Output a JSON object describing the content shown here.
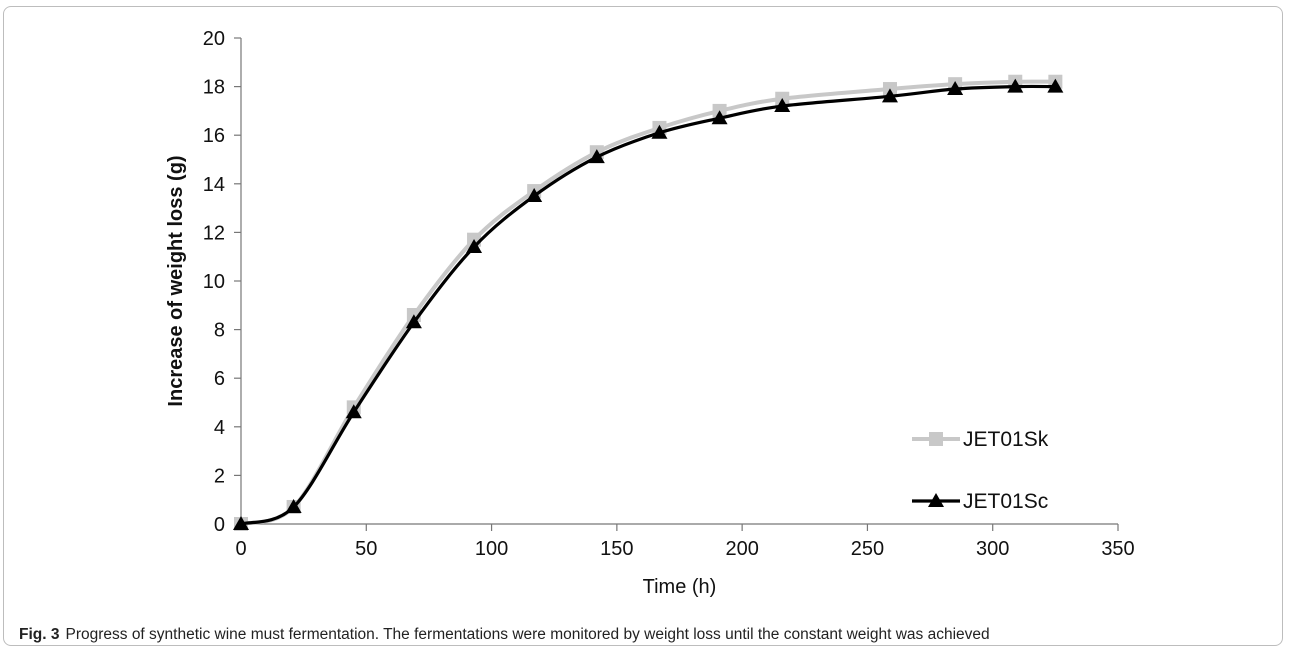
{
  "figure": {
    "label": "Fig. 3",
    "caption": "Progress of synthetic wine must fermentation. The fermentations were monitored by weight loss until the constant weight was achieved"
  },
  "chart_data": {
    "type": "line",
    "xlabel": "Time (h)",
    "ylabel": "Increase of weight loss (g)",
    "xlim": [
      0,
      350
    ],
    "ylim": [
      0,
      20
    ],
    "xticks": [
      0,
      50,
      100,
      150,
      200,
      250,
      300,
      350
    ],
    "yticks": [
      0,
      2,
      4,
      6,
      8,
      10,
      12,
      14,
      16,
      18,
      20
    ],
    "grid": false,
    "legend_position": "bottom-right",
    "series": [
      {
        "name": "JET01Sk",
        "marker": "square",
        "color": "#c8c8c8",
        "x": [
          0,
          21,
          45,
          69,
          93,
          117,
          142,
          167,
          191,
          216,
          259,
          285,
          309,
          325
        ],
        "y": [
          0,
          0.7,
          4.8,
          8.6,
          11.7,
          13.7,
          15.3,
          16.3,
          17.0,
          17.5,
          17.9,
          18.1,
          18.2,
          18.2
        ]
      },
      {
        "name": "JET01Sc",
        "marker": "triangle",
        "color": "#000000",
        "x": [
          0,
          21,
          45,
          69,
          93,
          117,
          142,
          167,
          191,
          216,
          259,
          285,
          309,
          325
        ],
        "y": [
          0,
          0.7,
          4.6,
          8.3,
          11.4,
          13.5,
          15.1,
          16.1,
          16.7,
          17.2,
          17.6,
          17.9,
          18.0,
          18.0
        ]
      }
    ]
  }
}
